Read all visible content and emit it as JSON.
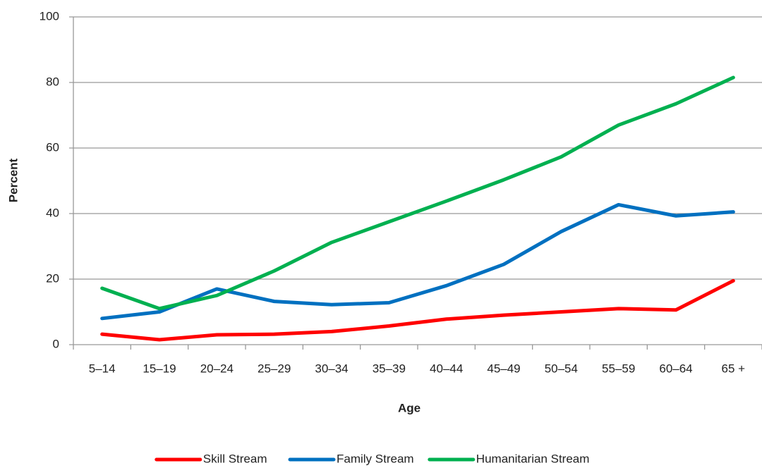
{
  "chart_data": {
    "type": "line",
    "x_label": "Age",
    "y_label": "Percent",
    "categories": [
      "5–14",
      "15–19",
      "20–24",
      "25–29",
      "30–34",
      "35–39",
      "40–44",
      "45–49",
      "50–54",
      "55–59",
      "60–64",
      "65 +"
    ],
    "series": [
      {
        "name": "Skill Stream",
        "color": "#ff0000",
        "values": [
          3.2,
          1.5,
          3,
          3.2,
          4,
          5.7,
          7.8,
          9,
          10,
          11,
          10.6,
          19.5
        ]
      },
      {
        "name": "Family Stream",
        "color": "#0070c0",
        "values": [
          8,
          10,
          17,
          13.2,
          12.2,
          12.8,
          18,
          24.5,
          34.5,
          42.7,
          39.3,
          40.5
        ]
      },
      {
        "name": "Humanitarian Stream",
        "color": "#00b050",
        "values": [
          17.2,
          11,
          15,
          22.5,
          31.2,
          37.5,
          43.8,
          50.3,
          57.3,
          67,
          73.5,
          81.5
        ]
      }
    ],
    "ylim": [
      0,
      100
    ],
    "yticks": [
      0,
      20,
      40,
      60,
      80,
      100
    ],
    "grid": true,
    "legend": "bottom"
  }
}
